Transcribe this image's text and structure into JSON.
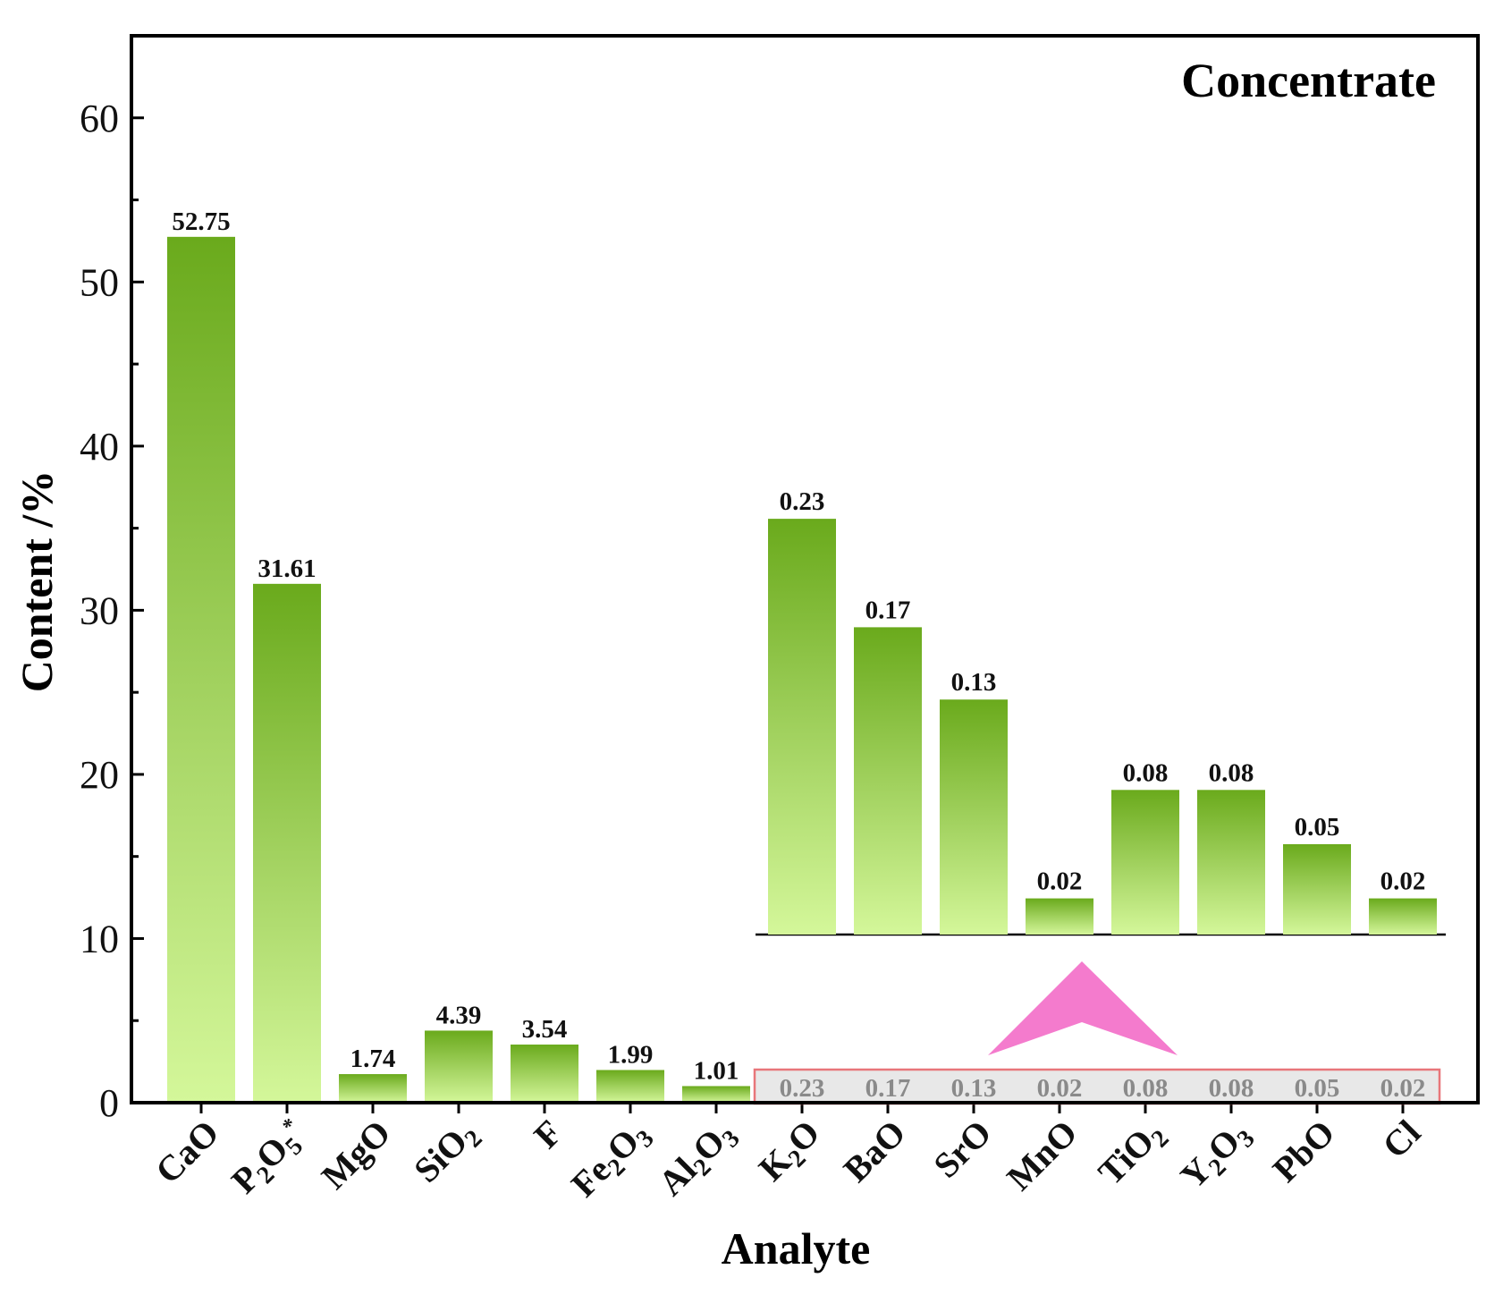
{
  "chart_data": {
    "type": "bar",
    "title": "Concentrate",
    "xlabel": "Analyte",
    "ylabel": "Content /%",
    "ylim": [
      0,
      65
    ],
    "yticks": [
      0,
      10,
      20,
      30,
      40,
      50,
      60
    ],
    "categories": [
      {
        "base": "CaO",
        "parts": [
          [
            "CaO",
            false
          ]
        ]
      },
      {
        "base": "P2O5*",
        "parts": [
          [
            "P",
            false
          ],
          [
            "2",
            true
          ],
          [
            "O",
            false
          ],
          [
            "5",
            true
          ],
          [
            "*",
            "sup"
          ]
        ]
      },
      {
        "base": "MgO",
        "parts": [
          [
            "MgO",
            false
          ]
        ]
      },
      {
        "base": "SiO2",
        "parts": [
          [
            "SiO",
            false
          ],
          [
            "2",
            true
          ]
        ]
      },
      {
        "base": "F",
        "parts": [
          [
            "F",
            false
          ]
        ]
      },
      {
        "base": "Fe2O3",
        "parts": [
          [
            "Fe",
            false
          ],
          [
            "2",
            true
          ],
          [
            "O",
            false
          ],
          [
            "3",
            true
          ]
        ]
      },
      {
        "base": "Al2O3",
        "parts": [
          [
            "Al",
            false
          ],
          [
            "2",
            true
          ],
          [
            "O",
            false
          ],
          [
            "3",
            true
          ]
        ]
      },
      {
        "base": "K2O",
        "parts": [
          [
            "K",
            false
          ],
          [
            "2",
            true
          ],
          [
            "O",
            false
          ]
        ]
      },
      {
        "base": "BaO",
        "parts": [
          [
            "BaO",
            false
          ]
        ]
      },
      {
        "base": "SrO",
        "parts": [
          [
            "SrO",
            false
          ]
        ]
      },
      {
        "base": "MnO",
        "parts": [
          [
            "MnO",
            false
          ]
        ]
      },
      {
        "base": "TiO2",
        "parts": [
          [
            "TiO",
            false
          ],
          [
            "2",
            true
          ]
        ]
      },
      {
        "base": "Y2O3",
        "parts": [
          [
            "Y",
            false
          ],
          [
            "2",
            true
          ],
          [
            "O",
            false
          ],
          [
            "3",
            true
          ]
        ]
      },
      {
        "base": "PbO",
        "parts": [
          [
            "PbO",
            false
          ]
        ]
      },
      {
        "base": "Cl",
        "parts": [
          [
            "Cl",
            false
          ]
        ]
      }
    ],
    "values": [
      52.75,
      31.61,
      1.74,
      4.39,
      3.54,
      1.99,
      1.01,
      0.23,
      0.17,
      0.13,
      0.02,
      0.08,
      0.08,
      0.05,
      0.02
    ],
    "value_labels": [
      "52.75",
      "31.61",
      "1.74",
      "4.39",
      "3.54",
      "1.99",
      "1.01",
      "0.23",
      "0.17",
      "0.13",
      "0.02",
      "0.08",
      "0.08",
      "0.05",
      "0.02"
    ],
    "inset": {
      "description": "magnified view of minor analytes",
      "categories": [
        "K2O",
        "BaO",
        "SrO",
        "MnO",
        "TiO2",
        "Y2O3",
        "PbO",
        "Cl"
      ],
      "values": [
        0.23,
        0.17,
        0.13,
        0.02,
        0.08,
        0.08,
        0.05,
        0.02
      ],
      "value_labels": [
        "0.23",
        "0.17",
        "0.13",
        "0.02",
        "0.08",
        "0.08",
        "0.05",
        "0.02"
      ],
      "ylim": [
        0,
        0.235
      ]
    },
    "colors": {
      "bar_top": "#6aaa1c",
      "bar_bottom": "#d4f79a",
      "highlight_box": "#e8767a",
      "arrow": "#f47bcd"
    }
  }
}
